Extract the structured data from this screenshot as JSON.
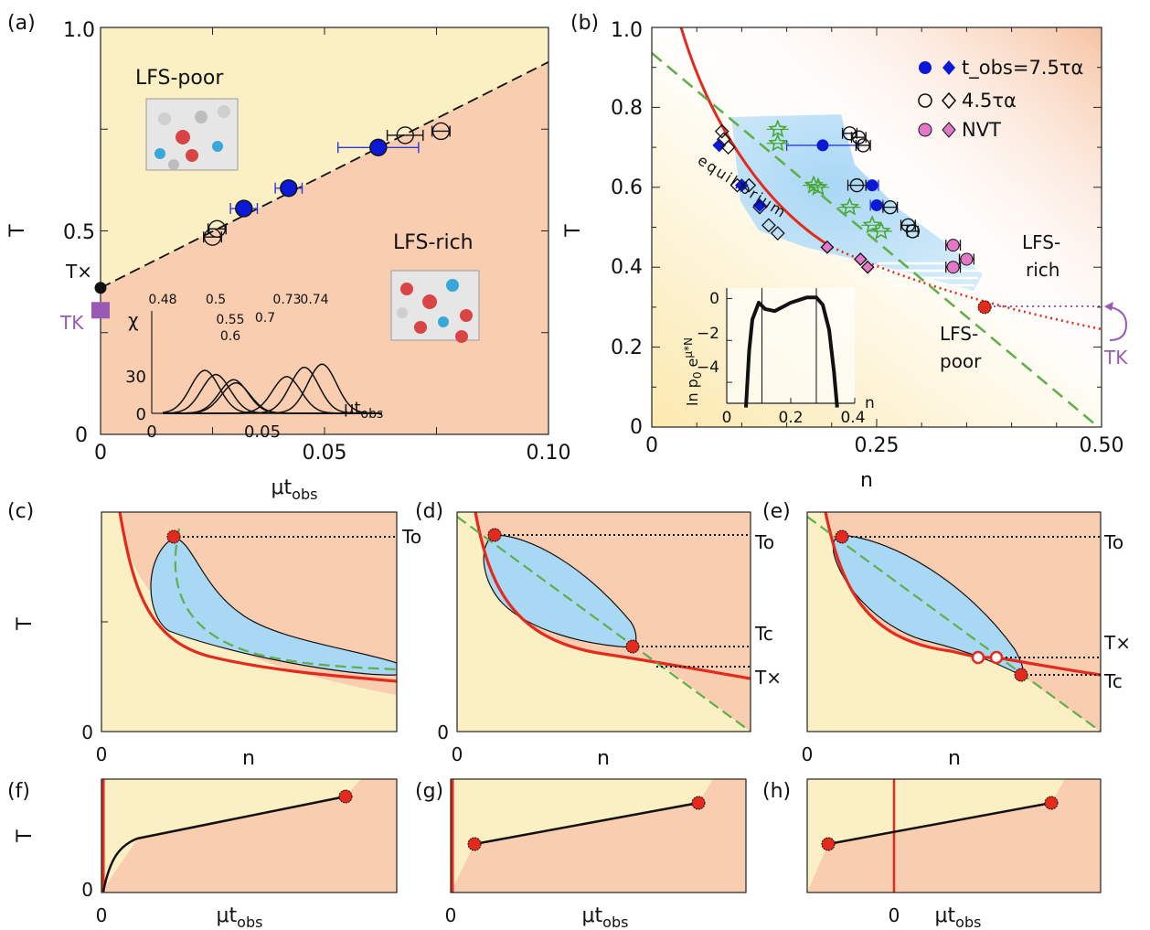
{
  "figure": {
    "panel_labels": [
      "(a)",
      "(b)",
      "(c)",
      "(d)",
      "(e)",
      "(f)",
      "(g)",
      "(h)"
    ],
    "colors": {
      "poor_bg": "#fbefc4",
      "rich_bg": "#f8cdb0",
      "blue_region": "#a9d8f5",
      "equilibrium_red": "#e32a1c",
      "dashed_green": "#5fae4a",
      "kauzmann_purple": "#9b59b6",
      "blue_marker": "#0b18d6",
      "pink_marker": "#e478c8",
      "green_star": "#47a836"
    }
  },
  "chart_data": [
    {
      "panel": "(a)",
      "type": "scatter",
      "xlabel": "μt_obs",
      "ylabel": "T",
      "xlim": [
        0,
        0.1
      ],
      "ylim": [
        0,
        1.0
      ],
      "x_ticks": [
        "0",
        "0.05",
        "0.10"
      ],
      "y_ticks": [
        "0",
        "0.5",
        "1.0"
      ],
      "regions": [
        "LFS-poor",
        "LFS-rich"
      ],
      "annotations": [
        "T×",
        "TK"
      ],
      "T_cross": 0.36,
      "T_K": 0.305,
      "coexistence_line": {
        "x": [
          0,
          0.1
        ],
        "y": [
          0.36,
          0.915
        ]
      },
      "series": [
        {
          "name": "7.5τα",
          "style": "filled-blue-circle",
          "points": [
            [
              0.032,
              0.555,
              0.003
            ],
            [
              0.042,
              0.605,
              0.003
            ],
            [
              0.062,
              0.705,
              0.009
            ]
          ]
        },
        {
          "name": "4.5τα",
          "style": "open-circle",
          "points": [
            [
              0.025,
              0.485,
              0.002
            ],
            [
              0.026,
              0.505,
              0.002
            ],
            [
              0.068,
              0.735,
              0.004
            ],
            [
              0.076,
              0.745,
              0.002
            ]
          ]
        }
      ],
      "inset": {
        "ylabel": "χ",
        "xlabel": "μt_obs",
        "x_ticks": [
          "0",
          "0.05"
        ],
        "y_ticks": [
          "0",
          "30"
        ],
        "curves": [
          {
            "T": "0.48",
            "center": 0.024,
            "height": 40
          },
          {
            "T": "0.5",
            "center": 0.029,
            "height": 36
          },
          {
            "T": "0.55",
            "center": 0.037,
            "height": 31
          },
          {
            "T": "0.6",
            "center": 0.038,
            "height": 28
          },
          {
            "T": "0.7",
            "center": 0.061,
            "height": 34
          },
          {
            "T": "0.73",
            "center": 0.069,
            "height": 43
          },
          {
            "T": "0.74",
            "center": 0.077,
            "height": 46
          }
        ]
      }
    },
    {
      "panel": "(b)",
      "type": "scatter",
      "xlabel": "n",
      "ylabel": "T",
      "xlim": [
        0,
        0.5
      ],
      "ylim": [
        0,
        1.0
      ],
      "x_ticks": [
        "0",
        "0.25",
        "0.50"
      ],
      "y_ticks": [
        "0",
        "0.2",
        "0.4",
        "0.6",
        "0.8",
        "1.0"
      ],
      "legend": [
        "t_obs=7.5τα",
        "4.5τα",
        "NVT"
      ],
      "legend_position": "top-right",
      "regions": [
        "LFS-rich",
        "LFS-poor"
      ],
      "equilibrium_label": "equilibrium",
      "annotations": [
        "TK"
      ],
      "critical_point": {
        "n": 0.37,
        "T": 0.3
      },
      "series": [
        {
          "name": "7.5τα circles",
          "marker": "filled-blue-circle",
          "points": [
            [
              0.19,
              0.705,
              0.04
            ],
            [
              0.245,
              0.605,
              0.007
            ],
            [
              0.25,
              0.555,
              0.007
            ]
          ]
        },
        {
          "name": "7.5τα diamonds",
          "marker": "filled-blue-diamond",
          "points": [
            [
              0.075,
              0.705
            ],
            [
              0.1,
              0.605
            ],
            [
              0.12,
              0.555
            ]
          ]
        },
        {
          "name": "4.5τα circles",
          "marker": "open-circle",
          "points": [
            [
              0.22,
              0.735,
              0.008
            ],
            [
              0.23,
              0.725,
              0.008
            ],
            [
              0.235,
              0.705,
              0.008
            ],
            [
              0.228,
              0.605,
              0.01
            ],
            [
              0.265,
              0.55,
              0.008
            ],
            [
              0.285,
              0.505,
              0.008
            ],
            [
              0.29,
              0.49,
              0.006
            ]
          ]
        },
        {
          "name": "4.5τα diamonds",
          "marker": "open-diamond",
          "points": [
            [
              0.078,
              0.74
            ],
            [
              0.08,
              0.72
            ],
            [
              0.085,
              0.7
            ],
            [
              0.095,
              0.605
            ],
            [
              0.108,
              0.605
            ],
            [
              0.12,
              0.55
            ],
            [
              0.13,
              0.505
            ],
            [
              0.14,
              0.485
            ]
          ]
        },
        {
          "name": "NVT circles",
          "marker": "pink-circle",
          "points": [
            [
              0.335,
              0.455,
              0.008
            ],
            [
              0.335,
              0.4,
              0.008
            ],
            [
              0.35,
              0.42,
              0.008
            ]
          ]
        },
        {
          "name": "NVT diamonds",
          "marker": "pink-diamond",
          "points": [
            [
              0.195,
              0.45
            ],
            [
              0.232,
              0.42
            ],
            [
              0.24,
              0.4
            ]
          ]
        },
        {
          "name": "green stars",
          "marker": "green-star",
          "points": [
            [
              0.14,
              0.745
            ],
            [
              0.14,
              0.71
            ],
            [
              0.18,
              0.605
            ],
            [
              0.185,
              0.6
            ],
            [
              0.22,
              0.55
            ],
            [
              0.245,
              0.505
            ],
            [
              0.255,
              0.49
            ]
          ]
        }
      ],
      "inset": {
        "ylabel": "ln p0 e^μ*N",
        "xlabel": "n",
        "xlim": [
          0,
          0.4
        ],
        "ylim": [
          -5,
          0.5
        ],
        "x_ticks": [
          "0",
          "0.2",
          "0.4"
        ],
        "y_ticks": [
          "0",
          "−2",
          "−4"
        ],
        "curve": {
          "x": [
            0.06,
            0.07,
            0.08,
            0.1,
            0.12,
            0.15,
            0.2,
            0.25,
            0.28,
            0.3,
            0.32,
            0.335,
            0.345
          ],
          "y": [
            -5.2,
            -2.5,
            -1.0,
            -0.2,
            -0.5,
            -0.6,
            -0.2,
            0.05,
            0.05,
            -0.3,
            -1.5,
            -3.5,
            -5.2
          ]
        },
        "vlines": [
          0.11,
          0.28
        ]
      }
    },
    {
      "panel": "(c)",
      "type": "line",
      "xlabel": "n",
      "ylabel": "T",
      "x_ticks": [
        "0"
      ],
      "y_ticks": [
        "0"
      ],
      "labels": [
        "To"
      ]
    },
    {
      "panel": "(d)",
      "type": "line",
      "xlabel": "n",
      "ylabel": "",
      "x_ticks": [
        "0"
      ],
      "y_ticks": [
        "0"
      ],
      "labels": [
        "To",
        "Tc",
        "T×"
      ]
    },
    {
      "panel": "(e)",
      "type": "line",
      "xlabel": "n",
      "ylabel": "",
      "x_ticks": [
        "0"
      ],
      "y_ticks": [
        "0"
      ],
      "labels": [
        "To",
        "T×",
        "Tc"
      ]
    },
    {
      "panel": "(f)",
      "type": "line",
      "xlabel": "μt_obs",
      "ylabel": "T",
      "x_ticks": [
        "0"
      ],
      "y_ticks": [
        "0"
      ]
    },
    {
      "panel": "(g)",
      "type": "line",
      "xlabel": "μt_obs",
      "ylabel": "",
      "x_ticks": [
        "0"
      ],
      "y_ticks": []
    },
    {
      "panel": "(h)",
      "type": "line",
      "xlabel": "μt_obs",
      "ylabel": "",
      "x_ticks": [
        "0"
      ],
      "y_ticks": []
    }
  ]
}
